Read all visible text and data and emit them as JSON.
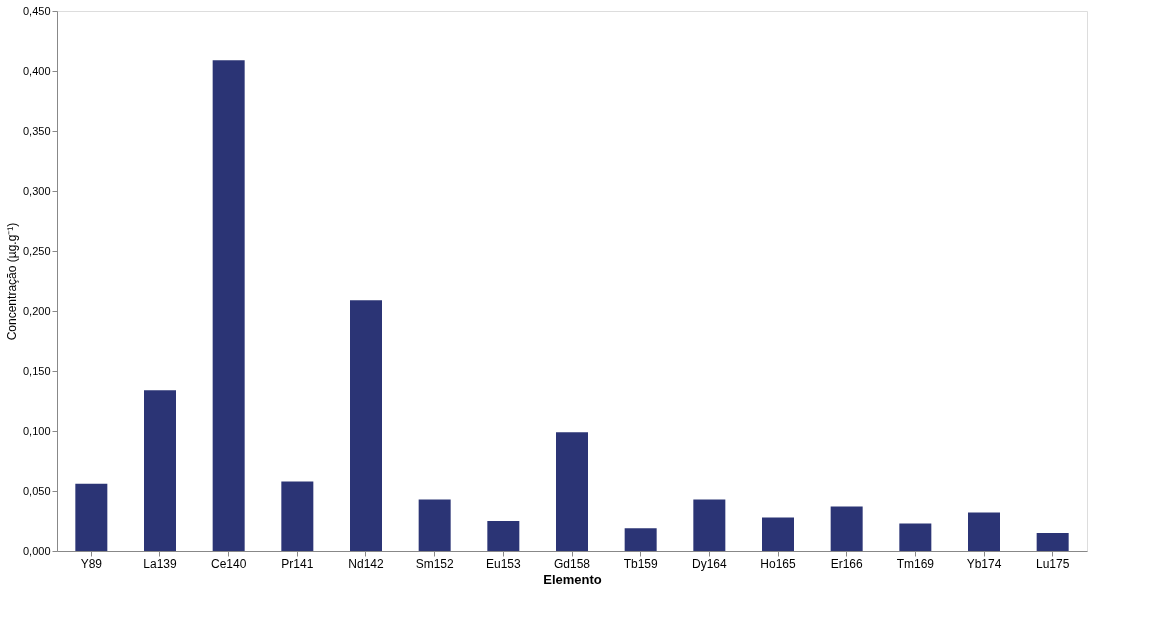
{
  "chart_data": {
    "type": "bar",
    "xlabel": "Elemento",
    "ylabel": "Concentração (µg.g⁻¹)",
    "categories": [
      "Y89",
      "La139",
      "Ce140",
      "Pr141",
      "Nd142",
      "Sm152",
      "Eu153",
      "Gd158",
      "Tb159",
      "Dy164",
      "Ho165",
      "Er166",
      "Tm169",
      "Yb174",
      "Lu175"
    ],
    "values": [
      0.056,
      0.134,
      0.409,
      0.058,
      0.209,
      0.043,
      0.025,
      0.099,
      0.019,
      0.043,
      0.028,
      0.037,
      0.023,
      0.032,
      0.015
    ],
    "color": "#2b3475",
    "ylim": [
      0,
      0.45
    ],
    "yticks": [
      {
        "value": 0,
        "label": "0,000"
      },
      {
        "value": 0.05,
        "label": "0,050"
      },
      {
        "value": 0.1,
        "label": "0,100"
      },
      {
        "value": 0.15,
        "label": "0,150"
      },
      {
        "value": 0.2,
        "label": "0,200"
      },
      {
        "value": 0.25,
        "label": "0,250"
      },
      {
        "value": 0.3,
        "label": "0,300"
      },
      {
        "value": 0.35,
        "label": "0,350"
      },
      {
        "value": 0.4,
        "label": "0,400"
      },
      {
        "value": 0.45,
        "label": "0,450"
      }
    ],
    "grid": false
  }
}
